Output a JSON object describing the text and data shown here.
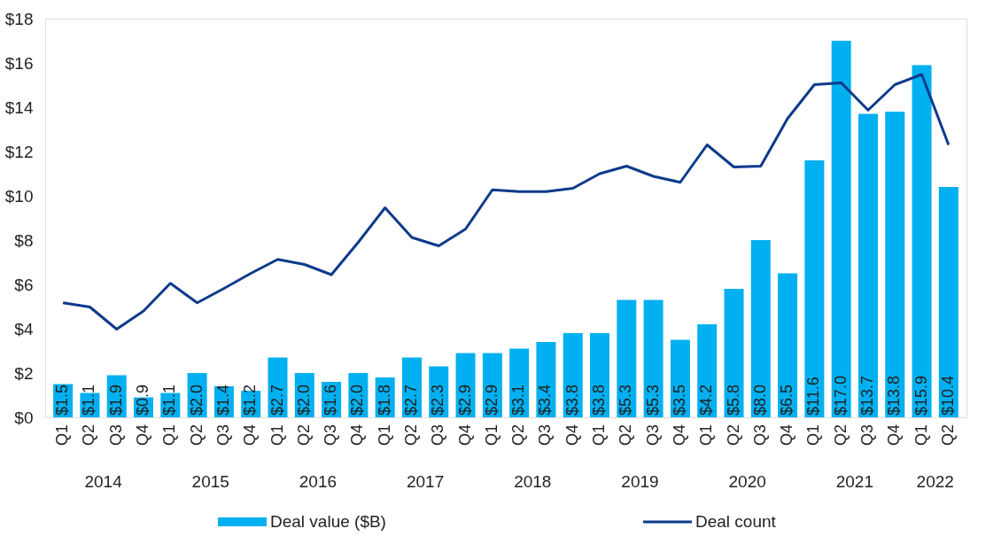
{
  "chart_data": {
    "type": "bar",
    "categories": [
      "Q1",
      "Q2",
      "Q3",
      "Q4",
      "Q1",
      "Q2",
      "Q3",
      "Q4",
      "Q1",
      "Q2",
      "Q3",
      "Q4",
      "Q1",
      "Q2",
      "Q3",
      "Q4",
      "Q1",
      "Q2",
      "Q3",
      "Q4",
      "Q1",
      "Q2",
      "Q3",
      "Q4",
      "Q1",
      "Q2",
      "Q3",
      "Q4",
      "Q1",
      "Q2",
      "Q3",
      "Q4",
      "Q1",
      "Q2"
    ],
    "series": [
      {
        "name": "Deal value ($B)",
        "color": "#00b0f0",
        "values": [
          1.5,
          1.1,
          1.9,
          0.9,
          1.1,
          2.0,
          1.4,
          1.2,
          2.7,
          2.0,
          1.6,
          2.0,
          1.8,
          2.7,
          2.3,
          2.9,
          2.9,
          3.1,
          3.4,
          3.8,
          3.8,
          5.3,
          5.3,
          3.5,
          4.2,
          5.8,
          8.0,
          6.5,
          11.6,
          17.0,
          13.7,
          13.8,
          15.9,
          10.4
        ],
        "value_labels": [
          "$1.5",
          "$1.1",
          "$1.9",
          "$0.9",
          "$1.1",
          "$2.0",
          "$1.4",
          "$1.2",
          "$2.7",
          "$2.0",
          "$1.6",
          "$2.0",
          "$1.8",
          "$2.7",
          "$2.3",
          "$2.9",
          "$2.9",
          "$3.1",
          "$3.4",
          "$3.8",
          "$3.8",
          "$5.3",
          "$5.3",
          "$3.5",
          "$4.2",
          "$5.8",
          "$8.0",
          "$6.5",
          "$11.6",
          "$17.0",
          "$13.7",
          "$13.8",
          "$15.9",
          "$10.4"
        ]
      },
      {
        "name": "Deal count",
        "type": "line",
        "color": "#0d3a8c",
        "values": [
          5.17,
          4.98,
          3.98,
          4.8,
          6.05,
          5.17,
          5.82,
          6.5,
          7.13,
          6.9,
          6.44,
          7.9,
          9.46,
          8.12,
          7.74,
          8.5,
          10.27,
          10.19,
          10.19,
          10.34,
          11.0,
          11.34,
          10.88,
          10.61,
          12.3,
          11.3,
          11.34,
          13.49,
          15.02,
          15.1,
          13.87,
          15.02,
          15.48,
          12.3
        ]
      }
    ],
    "annotations": [
      "2014",
      "2015",
      "2016",
      "2017",
      "2018",
      "2019",
      "2020",
      "2021",
      "2022"
    ],
    "ylim": [
      0,
      18
    ],
    "yticks": [
      {
        "value": 0,
        "label": "$0"
      },
      {
        "value": 2,
        "label": "$2"
      },
      {
        "value": 4,
        "label": "$4"
      },
      {
        "value": 6,
        "label": "$6"
      },
      {
        "value": 8,
        "label": "$8"
      },
      {
        "value": 10,
        "label": "$10"
      },
      {
        "value": 12,
        "label": "$12"
      },
      {
        "value": 14,
        "label": "$14"
      },
      {
        "value": 16,
        "label": "$16"
      },
      {
        "value": 18,
        "label": "$18"
      }
    ],
    "grid": false,
    "legend": "bottom"
  }
}
